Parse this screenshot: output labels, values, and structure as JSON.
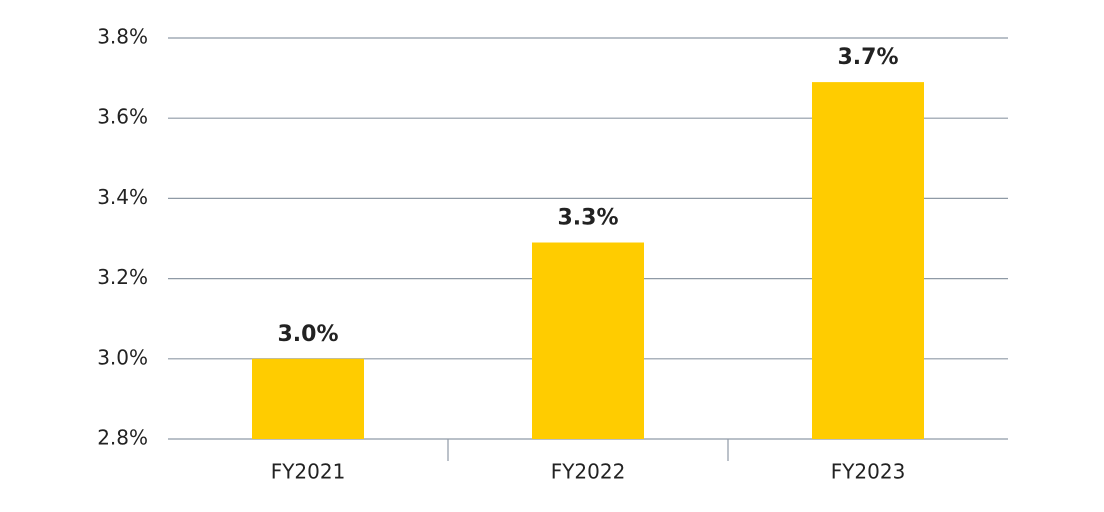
{
  "chart_data": {
    "type": "bar",
    "categories": [
      "FY2021",
      "FY2022",
      "FY2023"
    ],
    "values": [
      3.0,
      3.29,
      3.69
    ],
    "value_labels": [
      "3.0%",
      "3.3%",
      "3.7%"
    ],
    "color": "#ffcc00",
    "ylim": [
      2.8,
      3.8
    ],
    "yticks": [
      {
        "value": 2.8,
        "label": "2.8%"
      },
      {
        "value": 3.0,
        "label": "3.0%"
      },
      {
        "value": 3.2,
        "label": "3.2%"
      },
      {
        "value": 3.4,
        "label": "3.4%"
      },
      {
        "value": 3.6,
        "label": "3.6%"
      },
      {
        "value": 3.8,
        "label": "3.8%"
      }
    ],
    "grid": true
  }
}
